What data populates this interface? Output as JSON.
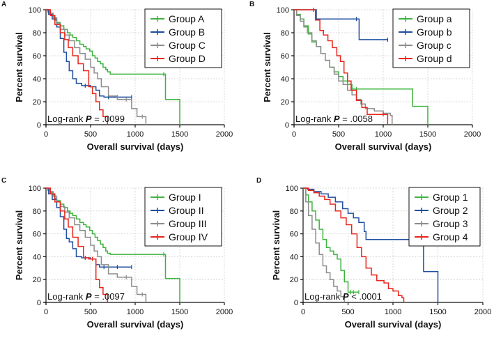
{
  "colors": {
    "green": "#3cb43c",
    "blue": "#1f4fa0",
    "gray": "#8c8c8c",
    "red": "#e8251c"
  },
  "chart_data": [
    {
      "type": "line",
      "panel": "A",
      "ylabel": "Percent survival",
      "xlabel": "Overall survival (days)",
      "xlim": [
        0,
        2000
      ],
      "ylim": [
        0,
        100
      ],
      "xticks": [
        "0",
        "500",
        "1000",
        "1500",
        "2000"
      ],
      "yticks": [
        "0",
        "20",
        "40",
        "60",
        "80",
        "100"
      ],
      "grid": true,
      "legend_position": "top-right",
      "stat_prefix": "Log-rank ",
      "stat_p": "P",
      "stat_value": " = .0099",
      "series": [
        {
          "name": "Group A",
          "color": "#3cb43c",
          "x": [
            0,
            20,
            45,
            70,
            95,
            120,
            160,
            200,
            240,
            270,
            300,
            340,
            380,
            420,
            450,
            490,
            520,
            550,
            580,
            610,
            640,
            670,
            690,
            720,
            1320,
            1340,
            1500
          ],
          "y": [
            100,
            98,
            96,
            94,
            91,
            89,
            86,
            83,
            80,
            78,
            76,
            73,
            70,
            68,
            66,
            64,
            60,
            58,
            55,
            53,
            50,
            48,
            46,
            44,
            44,
            22,
            0
          ]
        },
        {
          "name": "Group B",
          "color": "#1f4fa0",
          "x": [
            0,
            30,
            70,
            120,
            160,
            200,
            230,
            260,
            300,
            340,
            400,
            440,
            500,
            560,
            600,
            650,
            700,
            800,
            960
          ],
          "y": [
            100,
            96,
            92,
            85,
            75,
            63,
            55,
            47,
            40,
            36,
            34,
            34,
            33,
            30,
            25,
            24,
            24,
            24,
            24
          ]
        },
        {
          "name": "Group C",
          "color": "#8c8c8c",
          "x": [
            0,
            40,
            80,
            120,
            160,
            210,
            260,
            320,
            380,
            440,
            500,
            540,
            580,
            620,
            700,
            800,
            900,
            960,
            1020,
            1080,
            1120
          ],
          "y": [
            100,
            97,
            93,
            88,
            83,
            78,
            73,
            67,
            62,
            57,
            50,
            45,
            40,
            33,
            25,
            22,
            22,
            14,
            7,
            7,
            0
          ]
        },
        {
          "name": "Group D",
          "color": "#e8251c",
          "x": [
            0,
            50,
            100,
            160,
            210,
            250,
            300,
            360,
            420,
            480,
            520,
            560,
            600,
            640,
            690
          ],
          "y": [
            100,
            95,
            87,
            80,
            74,
            67,
            60,
            53,
            47,
            33,
            27,
            20,
            13,
            7,
            0
          ]
        }
      ]
    },
    {
      "type": "line",
      "panel": "B",
      "ylabel": "Percent survival",
      "xlabel": "Overall survival (days)",
      "xlim": [
        0,
        2000
      ],
      "ylim": [
        0,
        100
      ],
      "xticks": [
        "0",
        "500",
        "1000",
        "1500",
        "2000"
      ],
      "yticks": [
        "0",
        "20",
        "40",
        "60",
        "80",
        "100"
      ],
      "grid": true,
      "legend_position": "top-right",
      "stat_prefix": "Log-rank ",
      "stat_p": "P",
      "stat_value": " = .0058",
      "series": [
        {
          "name": "Group a",
          "color": "#3cb43c",
          "x": [
            0,
            30,
            70,
            110,
            160,
            200,
            250,
            300,
            350,
            400,
            450,
            500,
            550,
            600,
            650,
            700,
            1330,
            1500
          ],
          "y": [
            100,
            96,
            92,
            86,
            79,
            72,
            68,
            62,
            56,
            50,
            46,
            42,
            38,
            35,
            31,
            31,
            16,
            0
          ]
        },
        {
          "name": "Group b",
          "color": "#1f4fa0",
          "x": [
            0,
            220,
            250,
            700,
            730,
            1050
          ],
          "y": [
            100,
            100,
            92,
            92,
            74,
            74
          ]
        },
        {
          "name": "Group c",
          "color": "#8c8c8c",
          "x": [
            0,
            30,
            70,
            110,
            150,
            200,
            250,
            300,
            350,
            400,
            450,
            500,
            550,
            600,
            650,
            700,
            750,
            800,
            900,
            1000,
            1080,
            1100
          ],
          "y": [
            100,
            95,
            90,
            85,
            80,
            73,
            68,
            62,
            56,
            50,
            44,
            38,
            35,
            30,
            26,
            22,
            18,
            14,
            12,
            10,
            8,
            0
          ]
        },
        {
          "name": "Group d",
          "color": "#e8251c",
          "x": [
            0,
            240,
            290,
            330,
            380,
            430,
            480,
            520,
            560,
            600,
            640,
            700,
            760,
            820,
            1000,
            1050
          ],
          "y": [
            100,
            91,
            82,
            78,
            73,
            67,
            60,
            55,
            45,
            38,
            30,
            21,
            15,
            9,
            9,
            0
          ]
        }
      ]
    },
    {
      "type": "line",
      "panel": "C",
      "ylabel": "Percent survival",
      "xlabel": "Overall survival (days)",
      "xlim": [
        0,
        2000
      ],
      "ylim": [
        0,
        100
      ],
      "xticks": [
        "0",
        "500",
        "1000",
        "1500",
        "2000"
      ],
      "yticks": [
        "0",
        "20",
        "40",
        "60",
        "80",
        "100"
      ],
      "grid": true,
      "legend_position": "top-right",
      "stat_prefix": "Log-rank ",
      "stat_p": "P",
      "stat_value": " = .0097",
      "series": [
        {
          "name": "Group I",
          "color": "#3cb43c",
          "x": [
            0,
            20,
            45,
            70,
            95,
            120,
            160,
            200,
            240,
            270,
            300,
            340,
            380,
            420,
            450,
            490,
            520,
            550,
            580,
            610,
            640,
            670,
            690,
            720,
            1320,
            1340,
            1500
          ],
          "y": [
            100,
            98,
            96,
            94,
            91,
            89,
            86,
            83,
            80,
            78,
            76,
            73,
            70,
            68,
            66,
            63,
            60,
            57,
            54,
            51,
            48,
            45,
            43,
            42,
            42,
            21,
            0
          ]
        },
        {
          "name": "Group II",
          "color": "#1f4fa0",
          "x": [
            0,
            30,
            70,
            120,
            160,
            200,
            230,
            260,
            300,
            340,
            400,
            440,
            500,
            560,
            600,
            650,
            700,
            800,
            960
          ],
          "y": [
            100,
            95,
            90,
            83,
            75,
            64,
            56,
            53,
            47,
            40,
            39,
            39,
            38,
            33,
            31,
            31,
            31,
            31,
            31
          ]
        },
        {
          "name": "Group III",
          "color": "#8c8c8c",
          "x": [
            0,
            40,
            80,
            120,
            160,
            210,
            260,
            320,
            380,
            440,
            500,
            540,
            580,
            620,
            700,
            800,
            900,
            960,
            1020,
            1080,
            1120
          ],
          "y": [
            100,
            97,
            93,
            88,
            84,
            79,
            74,
            68,
            63,
            57,
            50,
            45,
            40,
            33,
            25,
            22,
            22,
            14,
            7,
            7,
            0
          ]
        },
        {
          "name": "Group IV",
          "color": "#e8251c",
          "x": [
            0,
            50,
            100,
            160,
            210,
            250,
            300,
            360,
            420,
            480,
            520,
            560,
            600,
            640,
            690
          ],
          "y": [
            100,
            95,
            88,
            80,
            73,
            66,
            57,
            49,
            39,
            38,
            38,
            20,
            13,
            7,
            0
          ]
        }
      ]
    },
    {
      "type": "line",
      "panel": "D",
      "ylabel": "Percent survival",
      "xlabel": "Overall survival (days)",
      "xlim": [
        0,
        2000
      ],
      "ylim": [
        0,
        100
      ],
      "xticks": [
        "0",
        "500",
        "1000",
        "1500",
        "2000"
      ],
      "yticks": [
        "0",
        "20",
        "40",
        "60",
        "80",
        "100"
      ],
      "grid": true,
      "legend_position": "top-right",
      "stat_prefix": "Log-rank ",
      "stat_p": "P",
      "stat_value": " < .0001",
      "series": [
        {
          "name": "Group 1",
          "color": "#3cb43c",
          "x": [
            0,
            30,
            60,
            100,
            140,
            180,
            220,
            260,
            300,
            340,
            380,
            420,
            460,
            500,
            530,
            560,
            620
          ],
          "y": [
            100,
            94,
            88,
            80,
            72,
            64,
            55,
            48,
            45,
            42,
            38,
            28,
            18,
            9,
            9,
            9,
            9
          ]
        },
        {
          "name": "Group 2",
          "color": "#1f4fa0",
          "x": [
            0,
            50,
            120,
            200,
            280,
            360,
            440,
            500,
            560,
            620,
            680,
            700,
            1320,
            1340,
            1500
          ],
          "y": [
            100,
            99,
            97,
            95,
            92,
            88,
            82,
            78,
            74,
            70,
            62,
            55,
            55,
            27,
            0
          ]
        },
        {
          "name": "Group 3",
          "color": "#8c8c8c",
          "x": [
            0,
            30,
            60,
            100,
            140,
            180,
            220,
            260,
            300,
            340,
            380,
            420,
            460
          ],
          "y": [
            100,
            88,
            76,
            64,
            52,
            42,
            32,
            26,
            20,
            14,
            10,
            5,
            0
          ]
        },
        {
          "name": "Group 4",
          "color": "#e8251c",
          "x": [
            0,
            60,
            120,
            180,
            240,
            300,
            360,
            420,
            480,
            540,
            600,
            650,
            700,
            760,
            820,
            900,
            950,
            1000,
            1060,
            1100,
            1120
          ],
          "y": [
            100,
            98,
            96,
            93,
            90,
            86,
            80,
            74,
            68,
            60,
            48,
            40,
            30,
            24,
            19,
            17,
            12,
            10,
            6,
            4,
            0
          ]
        }
      ]
    }
  ]
}
